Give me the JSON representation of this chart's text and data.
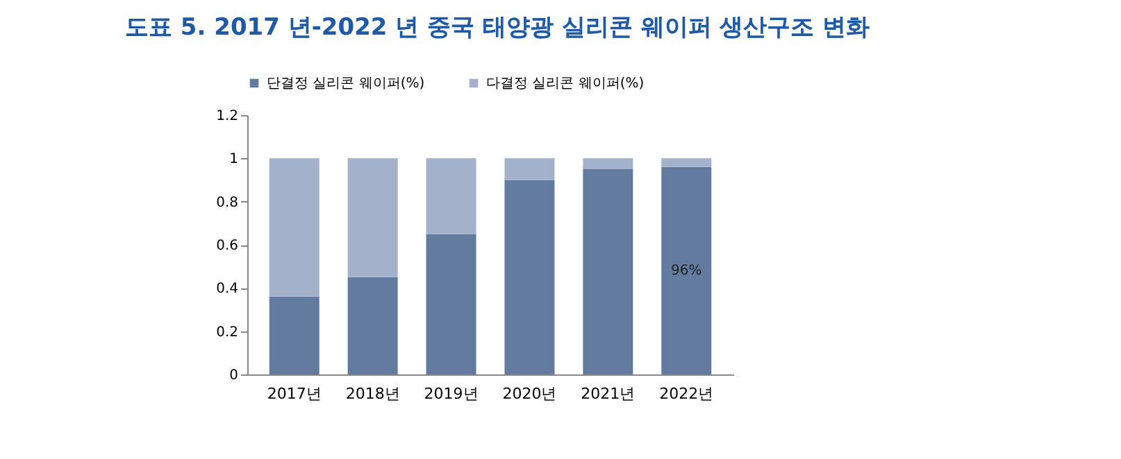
{
  "chart_data": {
    "type": "bar",
    "title": "도표 5. 2017 년-2022 년 중국 태양광 실리콘 웨이퍼 생산구조 변화",
    "categories": [
      "2017년",
      "2018년",
      "2019년",
      "2020년",
      "2021년",
      "2022년"
    ],
    "stacked": true,
    "ylim": [
      0,
      1.2
    ],
    "yticks": [
      0,
      0.2,
      0.4,
      0.6,
      0.8,
      1,
      1.2
    ],
    "grid": false,
    "legend": "top",
    "series": [
      {
        "name": "단결정 실리콘 웨이퍼(%)",
        "color": "#647ba0",
        "values": [
          0.36,
          0.45,
          0.65,
          0.9,
          0.95,
          0.96
        ],
        "value_labels": [
          null,
          null,
          null,
          null,
          null,
          "96%"
        ]
      },
      {
        "name": "다결정 실리콘 웨이퍼(%)",
        "color": "#a3b1ca",
        "values": [
          0.64,
          0.55,
          0.35,
          0.1,
          0.05,
          0.04
        ]
      }
    ]
  }
}
